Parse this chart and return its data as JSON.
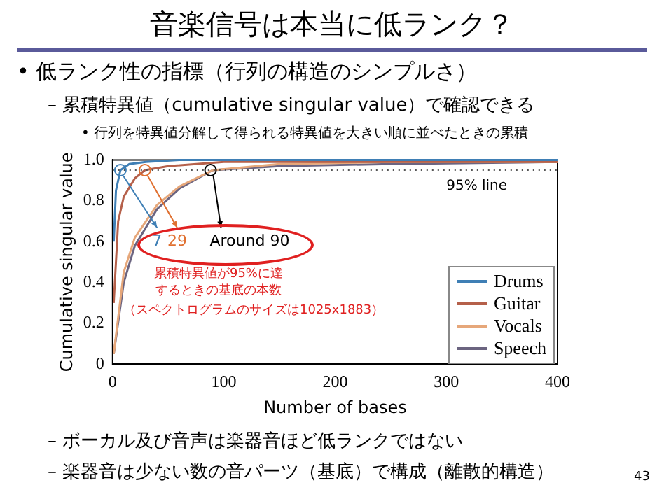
{
  "chart_data": {
    "type": "line",
    "title": "音楽信号は本当に低ランク？",
    "subtitle": "• 低ランク性の指標（行列の構造のシンプルさ）",
    "xlabel": "Number of bases",
    "ylabel": "Cumulative singular value",
    "xlim": [
      0,
      400
    ],
    "xticks": [
      0,
      100,
      200,
      300,
      400
    ],
    "ylim": [
      0,
      1
    ],
    "yticks": [
      0,
      {
        "value": 0.2,
        "label": "0.2"
      },
      {
        "value": 0.4,
        "label": "0.4"
      },
      {
        "value": 0.6,
        "label": "0.6"
      },
      {
        "value": 0.8,
        "label": "0.8"
      },
      {
        "value": 1,
        "label": "1.0"
      }
    ],
    "grid": false,
    "legend": "bottom right",
    "series": [
      {
        "name": "Drums",
        "color": "#3f7fb5",
        "x": [
          1,
          3,
          7,
          15,
          30,
          60,
          100,
          200,
          300,
          400
        ],
        "values": [
          0.6,
          0.85,
          0.95,
          0.98,
          0.99,
          1.0,
          1.0,
          1.0,
          1.0,
          1.0
        ]
      },
      {
        "name": "Guitar",
        "color": "#b5604a",
        "x": [
          1,
          5,
          10,
          20,
          29,
          50,
          100,
          200,
          400
        ],
        "values": [
          0.3,
          0.7,
          0.82,
          0.91,
          0.95,
          0.97,
          0.99,
          0.99,
          0.99
        ]
      },
      {
        "name": "Vocals",
        "color": "#e6a77a",
        "x": [
          1,
          10,
          20,
          40,
          60,
          90,
          150,
          250,
          400
        ],
        "values": [
          0.05,
          0.45,
          0.62,
          0.78,
          0.87,
          0.95,
          0.98,
          0.99,
          0.99
        ]
      },
      {
        "name": "Speech",
        "color": "#6b6480",
        "x": [
          1,
          10,
          20,
          40,
          60,
          90,
          150,
          250,
          400
        ],
        "values": [
          0.05,
          0.4,
          0.58,
          0.76,
          0.86,
          0.95,
          0.97,
          0.98,
          0.99
        ]
      }
    ],
    "ref_lines": [
      {
        "axis": "y",
        "value": 0.95,
        "label": "95% line",
        "color": "#555555",
        "line_style": "dotted"
      }
    ],
    "annotations": [
      "– 累積特異値（cumulative singular value）で確認できる",
      "• 行列を特異値分解して得られる特異値を大きい順に並べたときの累積",
      {
        "text": "7",
        "x": 7,
        "y": 0.95
      },
      {
        "text": "29",
        "x": 29,
        "y": 0.95
      },
      {
        "text": "Around 90",
        "x": 88,
        "y": 0.95
      },
      "累積特異値が95%に達するときの基底の本数",
      "（スペクトログラムのサイズは1025x1883）",
      "– ボーカル及び音声は楽器音ほど低ランクではない",
      "– 楽器音は少ない数の音パーツ（基底）で構成（離散的構造）",
      "43"
    ]
  }
}
